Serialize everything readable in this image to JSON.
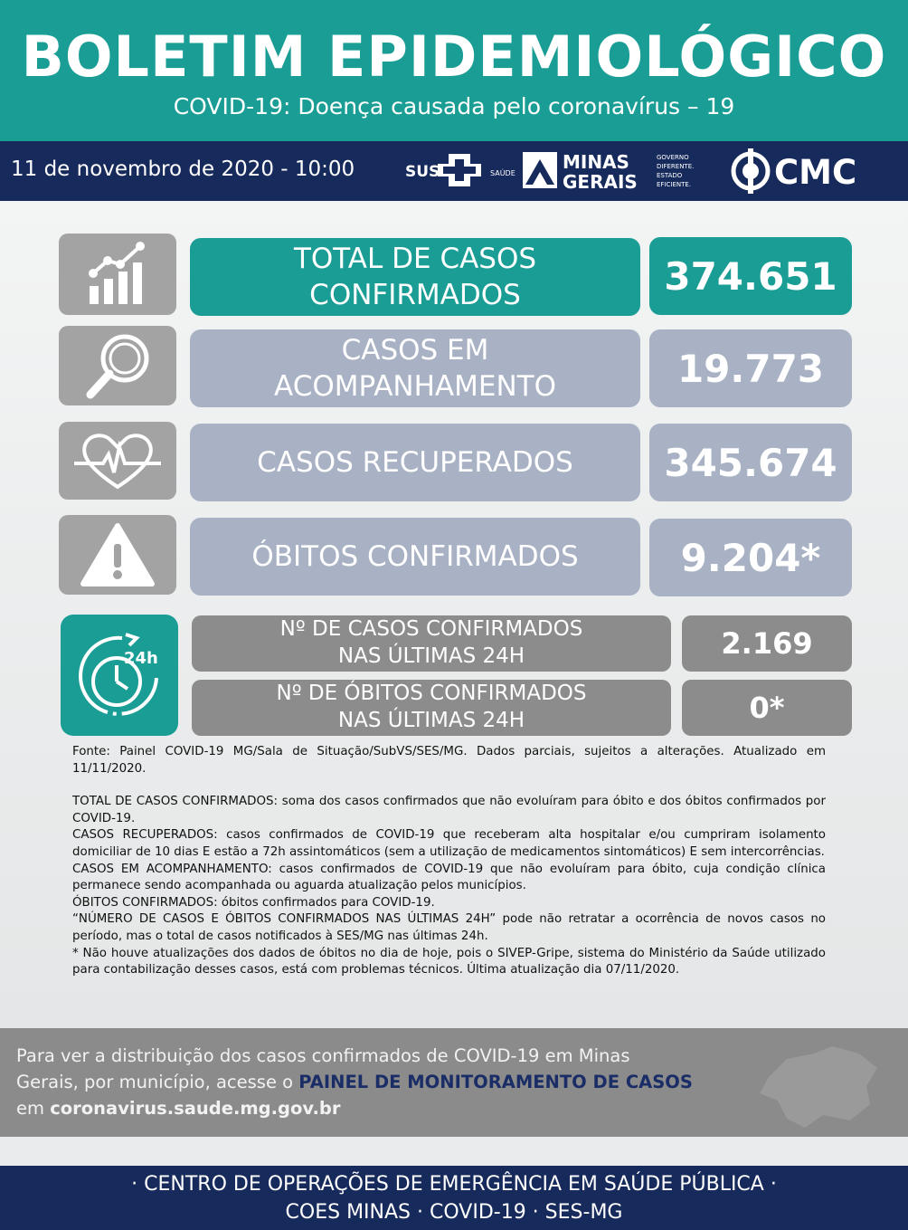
{
  "header": {
    "title": "BOLETIM EPIDEMIOLÓGICO",
    "subtitle": "COVID-19: Doença causada pelo coronavírus – 19"
  },
  "topbar": {
    "date": "11 de novembro de 2020 - 10:00",
    "logos": {
      "sus": "SUS",
      "saude": "SAÚDE",
      "minas1": "MINAS",
      "minas2": "GERAIS",
      "gov1": "GOVERNO",
      "gov2": "DIFERENTE.",
      "gov3": "ESTADO",
      "gov4": "EFICIENTE.",
      "cmc": "CMC"
    }
  },
  "stats": [
    {
      "label_line1": "TOTAL DE CASOS",
      "label_line2": "CONFIRMADOS",
      "value": "374.651",
      "icon": "chart-growth-icon"
    },
    {
      "label_line1": "CASOS EM",
      "label_line2": "ACOMPANHAMENTO",
      "value": "19.773",
      "icon": "magnifier-icon"
    },
    {
      "label_line1": "CASOS RECUPERADOS",
      "label_line2": "",
      "value": "345.674",
      "icon": "heartbeat-icon"
    },
    {
      "label_line1": "ÓBITOS CONFIRMADOS",
      "label_line2": "",
      "value": "9.204*",
      "icon": "warning-icon"
    }
  ],
  "last24": {
    "icon": "clock-24h-icon",
    "icon_text": "24h",
    "cases_label1": "Nº DE CASOS  CONFIRMADOS",
    "cases_label2": "NAS ÚLTIMAS 24H",
    "cases_value": "2.169",
    "deaths_label1": "Nº DE ÓBITOS  CONFIRMADOS",
    "deaths_label2": "NAS ÚLTIMAS 24H",
    "deaths_value": "0*"
  },
  "notes": {
    "source": "Fonte: Painel COVID-19 MG/Sala de Situação/SubVS/SES/MG. Dados parciais, sujeitos a alterações. Atualizado em 11/11/2020.",
    "total": "TOTAL DE  CASOS CONFIRMADOS: soma dos casos confirmados que não evoluíram para óbito e dos óbitos confirmados por COVID-19.",
    "recovered": "CASOS RECUPERADOS: casos confirmados de COVID-19 que receberam alta hospitalar e/ou cumpriram isolamento domiciliar de 10 dias E estão a 72h assintomáticos (sem a utilização de medicamentos sintomáticos) E sem intercorrências.",
    "followup": "CASOS EM ACOMPANHAMENTO: casos confirmados de COVID-19 que não evoluíram para óbito, cuja condição clínica permanece sendo acompanhada ou aguarda atualização pelos municípios.",
    "deaths": "ÓBITOS CONFIRMADOS: óbitos confirmados para COVID-19.",
    "last24": "“NÚMERO DE CASOS E ÓBITOS CONFIRMADOS NAS ÚLTIMAS 24H” pode não retratar a ocorrência de novos casos no período, mas o total de casos notificados à SES/MG nas últimas 24h.",
    "asterisk": "* Não houve atualizações dos dados de óbitos no dia de hoje, pois o SIVEP-Gripe, sistema do Ministério da Saúde utilizado para contabilização desses casos, está com problemas técnicos. Última atualização dia 07/11/2020."
  },
  "footer": {
    "line1": "Para ver a distribuição dos casos confirmados de COVID-19 em Minas",
    "line2_pre": "Gerais, por município, acesse o ",
    "line2_link": "PAINEL DE MONITORAMENTO DE CASOS",
    "line3_pre": "em ",
    "line3_url": "coronavirus.saude.mg.gov.br",
    "bar_line1": "· CENTRO DE OPERAÇÕES DE EMERGÊNCIA EM SAÚDE PÚBLICA ·",
    "bar_line2": "COES MINAS · COVID-19 · SES-MG"
  },
  "colors": {
    "teal": "#1a9d94",
    "navy": "#172a5c",
    "slate": "#a8b2c4",
    "grey": "#8c8c8c"
  }
}
